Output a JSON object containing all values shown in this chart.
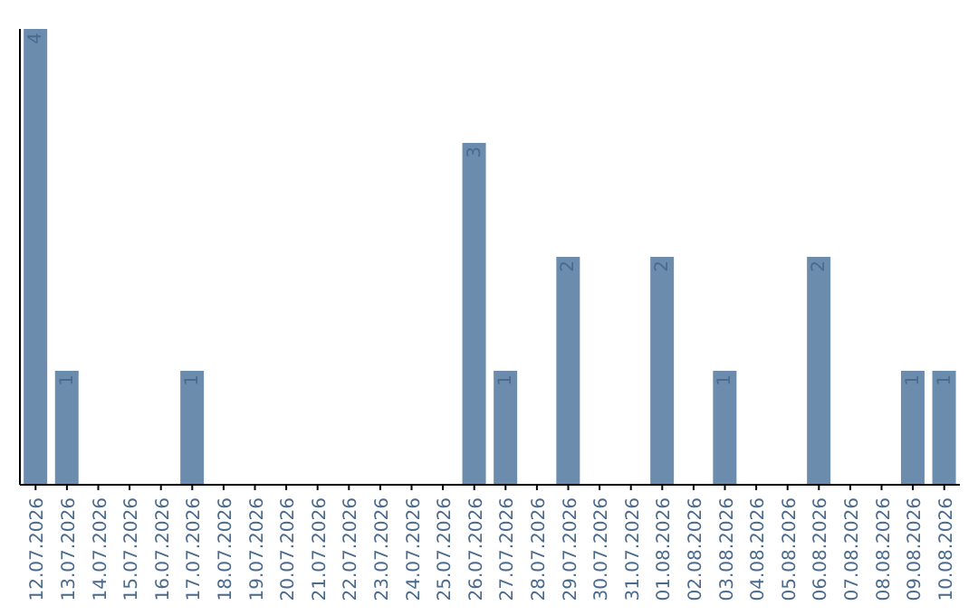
{
  "chart_data": {
    "type": "bar",
    "categories": [
      "12.07.2026",
      "13.07.2026",
      "14.07.2026",
      "15.07.2026",
      "16.07.2026",
      "17.07.2026",
      "18.07.2026",
      "19.07.2026",
      "20.07.2026",
      "21.07.2026",
      "22.07.2026",
      "23.07.2026",
      "24.07.2026",
      "25.07.2026",
      "26.07.2026",
      "27.07.2026",
      "28.07.2026",
      "29.07.2026",
      "30.07.2026",
      "31.07.2026",
      "01.08.2026",
      "02.08.2026",
      "03.08.2026",
      "04.08.2026",
      "05.08.2026",
      "06.08.2026",
      "07.08.2026",
      "08.08.2026",
      "09.08.2026",
      "10.08.2026"
    ],
    "values": [
      4,
      1,
      0,
      0,
      0,
      1,
      0,
      0,
      0,
      0,
      0,
      0,
      0,
      0,
      3,
      1,
      0,
      2,
      0,
      0,
      2,
      0,
      1,
      0,
      0,
      2,
      0,
      0,
      1,
      1
    ],
    "value_labels": [
      "4",
      "1",
      null,
      null,
      null,
      "1",
      null,
      null,
      null,
      null,
      null,
      null,
      null,
      null,
      "3",
      "1",
      null,
      "2",
      null,
      null,
      "2",
      null,
      "1",
      null,
      null,
      "2",
      null,
      null,
      "1",
      "1"
    ],
    "color": "#6b8cad",
    "tick_labels": "x"
  }
}
